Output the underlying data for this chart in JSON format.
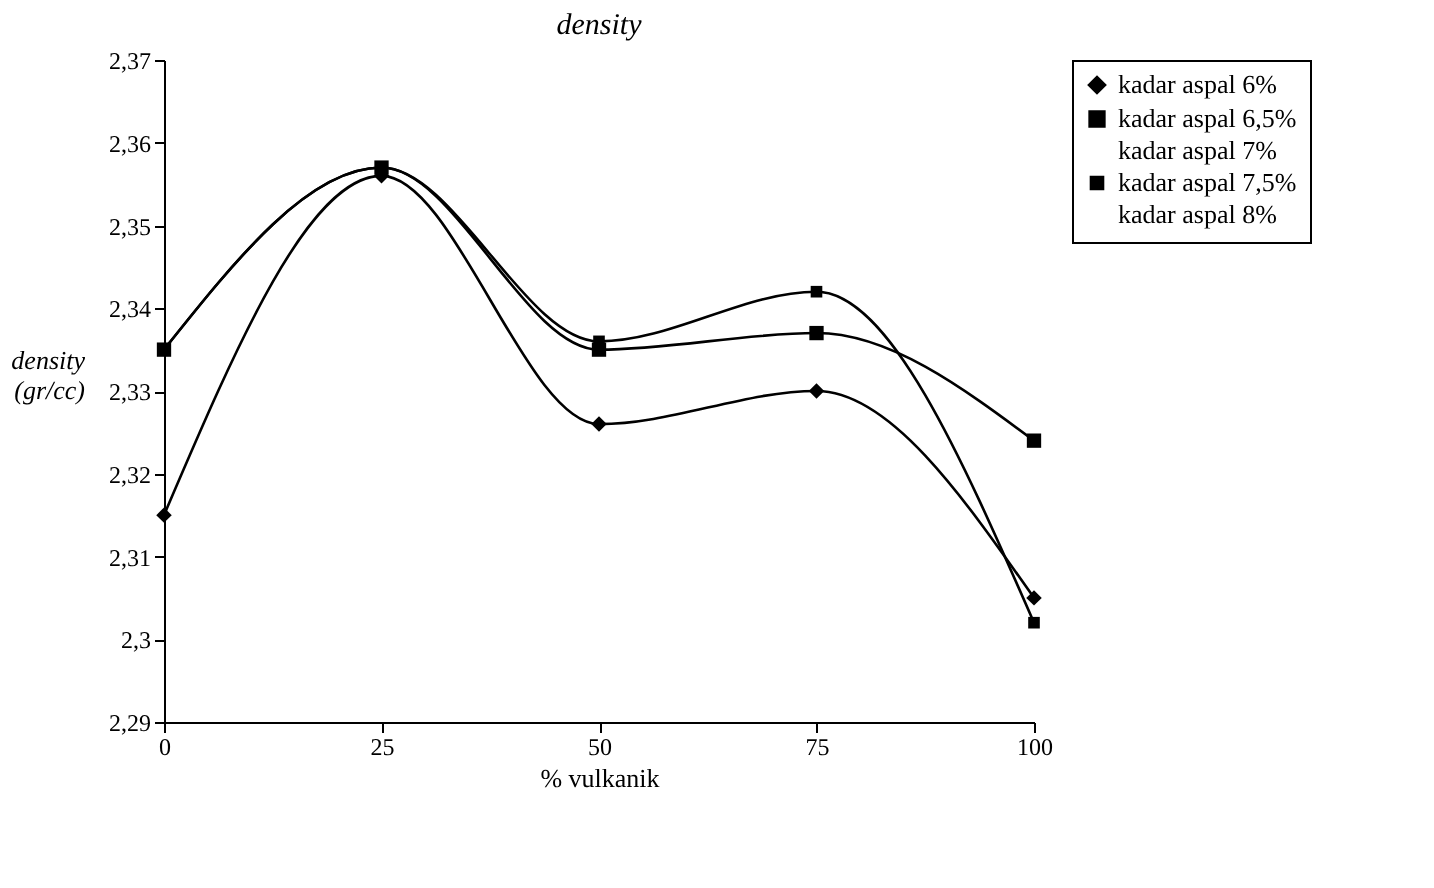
{
  "chart_data": {
    "type": "line",
    "title": "density",
    "xlabel": "% vulkanik",
    "ylabel": "density (gr/cc)",
    "x": [
      0,
      25,
      50,
      75,
      100
    ],
    "xlim": [
      0,
      100
    ],
    "xticks": [
      0,
      25,
      50,
      75,
      100
    ],
    "ylim": [
      2.29,
      2.37
    ],
    "yticks": [
      {
        "value": 2.29,
        "label": "2,29"
      },
      {
        "value": 2.3,
        "label": "2,3"
      },
      {
        "value": 2.31,
        "label": "2,31"
      },
      {
        "value": 2.32,
        "label": "2,32"
      },
      {
        "value": 2.33,
        "label": "2,33"
      },
      {
        "value": 2.34,
        "label": "2,34"
      },
      {
        "value": 2.35,
        "label": "2,35"
      },
      {
        "value": 2.36,
        "label": "2,36"
      },
      {
        "value": 2.37,
        "label": "2,37"
      }
    ],
    "grid": false,
    "legend": "right",
    "series": [
      {
        "name": "kadar aspal 6%",
        "color": "#000000",
        "marker": "diamond",
        "values": [
          2.315,
          2.356,
          2.326,
          2.33,
          2.305
        ]
      },
      {
        "name": "kadar aspal 6,5%",
        "color": "#000000",
        "marker": "square",
        "values": [
          2.335,
          2.357,
          2.335,
          2.337,
          2.324
        ]
      },
      {
        "name": "kadar aspal 7%",
        "marker": "none",
        "values": [
          null,
          null,
          null,
          null,
          null
        ]
      },
      {
        "name": "kadar aspal 7,5%",
        "color": "#000000",
        "marker": "square",
        "values": [
          2.335,
          2.357,
          2.336,
          2.342,
          2.302
        ]
      },
      {
        "name": "kadar aspal 8%",
        "marker": "none",
        "values": [
          null,
          null,
          null,
          null,
          null
        ]
      }
    ]
  }
}
